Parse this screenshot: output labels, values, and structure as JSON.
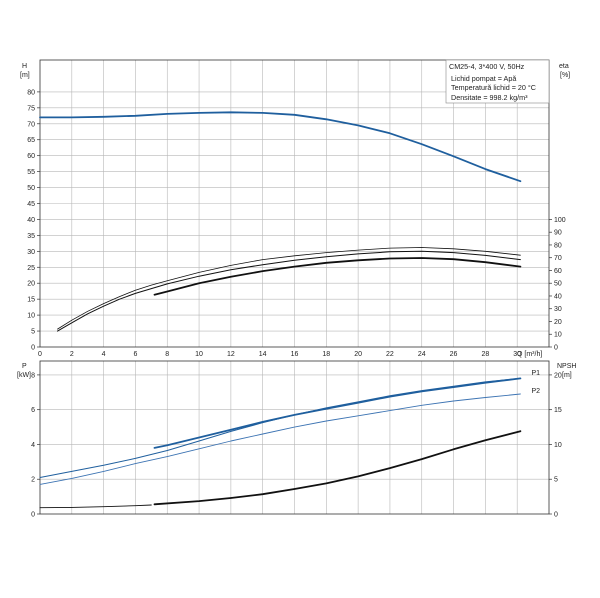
{
  "info_box": {
    "title": "CM25-4, 3*400 V, 50Hz",
    "lines": [
      "Lichid pompat = Apă",
      "Temperatură lichid = 20 °C",
      "Densitate = 998.2 kg/m³"
    ]
  },
  "colors": {
    "blue": "#1f5f9e",
    "blue_light": "#3d74b3",
    "black": "#111111",
    "grid": "#b7b7b7"
  },
  "chart_data": [
    {
      "type": "line",
      "x_label": "Q [m³/h]",
      "x_ticks": [
        "0",
        "2",
        "4",
        "6",
        "8",
        "10",
        "12",
        "14",
        "16",
        "18",
        "20",
        "22",
        "24",
        "26",
        "28",
        "30"
      ],
      "xlim": [
        0,
        32
      ],
      "left_axis": {
        "label": "H",
        "unit": "[m]",
        "ylim": [
          0,
          90
        ],
        "ticks": [
          "0",
          "5",
          "10",
          "15",
          "20",
          "25",
          "30",
          "35",
          "40",
          "45",
          "50",
          "55",
          "60",
          "65",
          "70",
          "75",
          "80"
        ]
      },
      "right_axis": {
        "label": "eta",
        "unit": "[%]",
        "ylim": [
          0,
          225
        ],
        "ticks": [
          "0",
          "10",
          "20",
          "30",
          "40",
          "50",
          "60",
          "70",
          "80",
          "90",
          "100"
        ]
      },
      "series": [
        {
          "axis": "left",
          "color": "blue",
          "width": 1.8,
          "points": [
            [
              0,
              72
            ],
            [
              2,
              72
            ],
            [
              4,
              72.2
            ],
            [
              6,
              72.5
            ],
            [
              8,
              73.1
            ],
            [
              10,
              73.4
            ],
            [
              12,
              73.6
            ],
            [
              14,
              73.4
            ],
            [
              16,
              72.8
            ],
            [
              18,
              71.4
            ],
            [
              20,
              69.5
            ],
            [
              22,
              67
            ],
            [
              24,
              63.6
            ],
            [
              26,
              59.8
            ],
            [
              28,
              55.8
            ],
            [
              30.2,
              52
            ]
          ]
        },
        {
          "axis": "right",
          "color": "black",
          "width": 1.0,
          "points": [
            [
              1.1,
              12.5
            ],
            [
              2,
              19
            ],
            [
              3,
              26
            ],
            [
              4,
              32
            ],
            [
              5,
              37.5
            ],
            [
              6,
              42
            ],
            [
              8,
              49.5
            ],
            [
              10,
              55.5
            ],
            [
              12,
              60.5
            ],
            [
              14,
              64.5
            ],
            [
              16,
              68
            ],
            [
              18,
              70.8
            ],
            [
              20,
              73
            ],
            [
              22,
              74.6
            ],
            [
              24,
              75
            ],
            [
              26,
              74
            ],
            [
              28,
              71.8
            ],
            [
              30.2,
              68.5
            ]
          ]
        },
        {
          "axis": "right",
          "color": "black",
          "width": 0.8,
          "points": [
            [
              1.1,
              14
            ],
            [
              2,
              21
            ],
            [
              3,
              28
            ],
            [
              4,
              34
            ],
            [
              5,
              39.5
            ],
            [
              6,
              44.5
            ],
            [
              7,
              48.5
            ],
            [
              8,
              52
            ],
            [
              10,
              58.5
            ],
            [
              12,
              64
            ],
            [
              14,
              68.5
            ],
            [
              16,
              71.5
            ],
            [
              18,
              74
            ],
            [
              20,
              76
            ],
            [
              22,
              77.5
            ],
            [
              24,
              78
            ],
            [
              26,
              77
            ],
            [
              28,
              75
            ],
            [
              30.2,
              72
            ]
          ]
        },
        {
          "axis": "right",
          "color": "black",
          "width": 1.8,
          "points": [
            [
              7.2,
              41
            ],
            [
              8,
              43.5
            ],
            [
              10,
              50
            ],
            [
              12,
              55
            ],
            [
              14,
              59.5
            ],
            [
              16,
              63
            ],
            [
              18,
              66
            ],
            [
              20,
              68
            ],
            [
              22,
              69.4
            ],
            [
              24,
              69.8
            ],
            [
              26,
              68.8
            ],
            [
              28,
              66.5
            ],
            [
              30.2,
              63
            ]
          ]
        }
      ]
    },
    {
      "type": "line",
      "xlim": [
        0,
        32
      ],
      "left_axis": {
        "label": "P",
        "unit": "[kW]",
        "ylim": [
          0,
          8.8
        ],
        "ticks": [
          "0",
          "2",
          "4",
          "6",
          "8"
        ]
      },
      "right_axis": {
        "label": "NPSH",
        "unit": "[m]",
        "ylim": [
          0,
          22
        ],
        "ticks": [
          "0",
          "5",
          "10",
          "15",
          "20"
        ]
      },
      "series": [
        {
          "name": "P1",
          "axis": "left",
          "color": "blue",
          "width": 1.0,
          "points": [
            [
              0,
              2.1
            ],
            [
              2,
              2.45
            ],
            [
              4,
              2.8
            ],
            [
              6,
              3.2
            ],
            [
              8,
              3.65
            ],
            [
              10,
              4.2
            ],
            [
              12,
              4.75
            ],
            [
              14,
              5.25
            ],
            [
              16,
              5.7
            ],
            [
              18,
              6.1
            ],
            [
              20,
              6.45
            ],
            [
              22,
              6.8
            ],
            [
              24,
              7.1
            ],
            [
              26,
              7.35
            ],
            [
              28,
              7.6
            ],
            [
              30.2,
              7.8
            ]
          ]
        },
        {
          "name": "P1",
          "axis": "left",
          "color": "blue",
          "width": 1.8,
          "points": [
            [
              7.2,
              3.8
            ],
            [
              8,
              3.95
            ],
            [
              10,
              4.4
            ],
            [
              12,
              4.85
            ],
            [
              14,
              5.3
            ],
            [
              16,
              5.7
            ],
            [
              18,
              6.05
            ],
            [
              20,
              6.4
            ],
            [
              22,
              6.75
            ],
            [
              24,
              7.05
            ],
            [
              26,
              7.3
            ],
            [
              28,
              7.55
            ],
            [
              30.2,
              7.8
            ]
          ]
        },
        {
          "name": "P2",
          "axis": "left",
          "color": "blue_light",
          "width": 0.9,
          "points": [
            [
              0,
              1.7
            ],
            [
              2,
              2.05
            ],
            [
              4,
              2.45
            ],
            [
              6,
              2.9
            ],
            [
              8,
              3.3
            ],
            [
              10,
              3.75
            ],
            [
              12,
              4.2
            ],
            [
              14,
              4.6
            ],
            [
              16,
              5.0
            ],
            [
              18,
              5.35
            ],
            [
              20,
              5.65
            ],
            [
              22,
              5.95
            ],
            [
              24,
              6.25
            ],
            [
              26,
              6.5
            ],
            [
              28,
              6.7
            ],
            [
              30.2,
              6.9
            ]
          ]
        },
        {
          "axis": "right",
          "color": "black",
          "width": 0.9,
          "points": [
            [
              0,
              0.9
            ],
            [
              2,
              0.95
            ],
            [
              4,
              1.05
            ],
            [
              6,
              1.2
            ],
            [
              7,
              1.3
            ]
          ]
        },
        {
          "axis": "right",
          "color": "black",
          "width": 1.8,
          "points": [
            [
              7.2,
              1.4
            ],
            [
              10,
              1.85
            ],
            [
              12,
              2.3
            ],
            [
              14,
              2.85
            ],
            [
              16,
              3.6
            ],
            [
              18,
              4.4
            ],
            [
              20,
              5.4
            ],
            [
              22,
              6.6
            ],
            [
              24,
              7.9
            ],
            [
              26,
              9.3
            ],
            [
              28,
              10.6
            ],
            [
              30.2,
              11.9
            ]
          ]
        }
      ],
      "series_labels": [
        {
          "text": "P1",
          "x": 30.9,
          "y": 7.95
        },
        {
          "text": "P2",
          "x": 30.9,
          "y": 6.9
        }
      ]
    }
  ]
}
